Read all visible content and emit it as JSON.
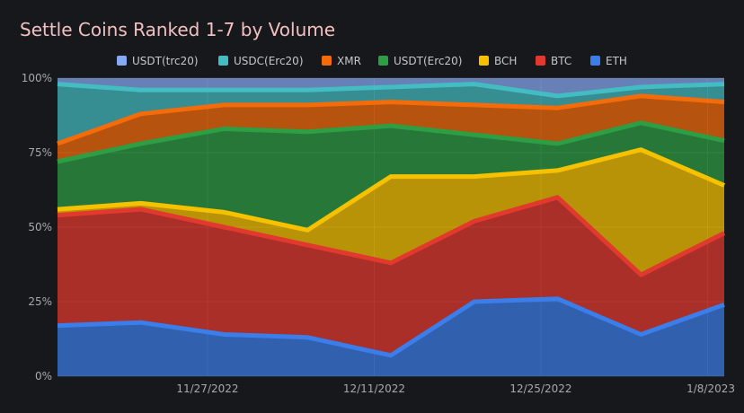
{
  "chart_data": {
    "type": "area",
    "stacked": true,
    "normalized": true,
    "title": "Settle Coins Ranked 1-7 by Volume",
    "x_labels": [
      "11/27/2022",
      "12/11/2022",
      "12/25/2022",
      "1/8/2023"
    ],
    "y_ticks": [
      "0%",
      "25%",
      "50%",
      "75%",
      "100%"
    ],
    "ylim": [
      0,
      100
    ],
    "legend_position": "top",
    "legend": [
      "USDT(trc20)",
      "USDC(Erc20)",
      "XMR",
      "USDT(Erc20)",
      "BCH",
      "BTC",
      "ETH"
    ],
    "x_points": [
      0,
      1,
      2,
      3,
      4,
      5,
      6,
      7,
      8
    ],
    "series_bottom_to_top": [
      {
        "name": "ETH",
        "color": "#3b7de9",
        "values": [
          17,
          18,
          14,
          13,
          7,
          25,
          26,
          14,
          24
        ]
      },
      {
        "name": "BTC",
        "color": "#e2392e",
        "values": [
          37,
          38,
          36,
          31,
          31,
          27,
          34,
          20,
          24
        ]
      },
      {
        "name": "BCH",
        "color": "#f6c200",
        "values": [
          2,
          2,
          5,
          5,
          29,
          15,
          9,
          42,
          16
        ]
      },
      {
        "name": "USDT(Erc20)",
        "color": "#2e9e44",
        "values": [
          16,
          20,
          28,
          33,
          17,
          14,
          9,
          9,
          15
        ]
      },
      {
        "name": "XMR",
        "color": "#f46b0a",
        "values": [
          6,
          10,
          8,
          9,
          8,
          10,
          12,
          9,
          13
        ]
      },
      {
        "name": "USDC(Erc20)",
        "color": "#43bcc2",
        "values": [
          20,
          8,
          5,
          5,
          5,
          7,
          4,
          3,
          6
        ]
      },
      {
        "name": "USDT(trc20)",
        "color": "#86aaf2",
        "values": [
          2,
          4,
          4,
          4,
          3,
          2,
          6,
          3,
          2
        ]
      }
    ]
  }
}
